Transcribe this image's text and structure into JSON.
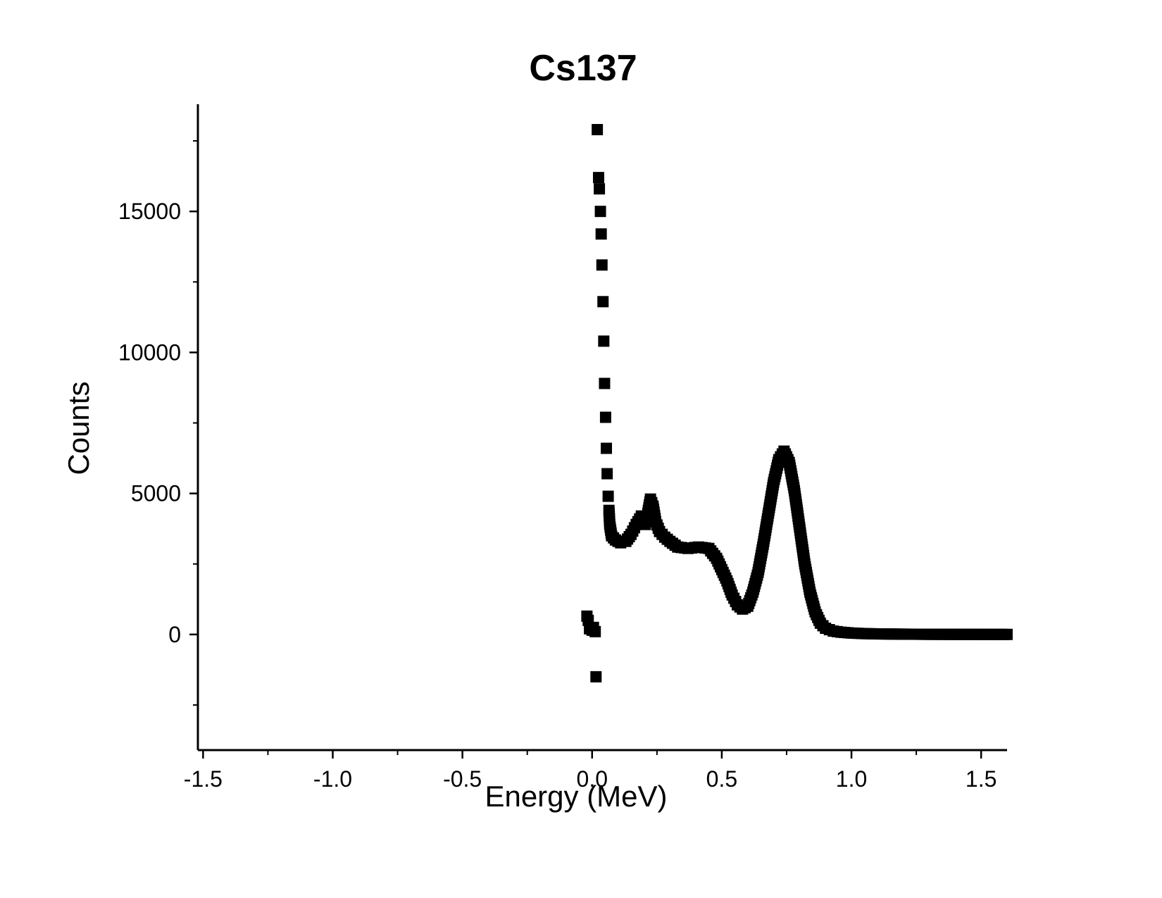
{
  "chart_data": {
    "type": "scatter",
    "title": "Cs137",
    "xlabel": "Energy (MeV)",
    "ylabel": "Counts",
    "xlim": [
      -1.52,
      1.6
    ],
    "ylim": [
      -4100,
      18800
    ],
    "xticks": [
      -1.5,
      -1.0,
      -0.5,
      0.0,
      0.5,
      1.0,
      1.5
    ],
    "xtick_labels": [
      "-1.5",
      "-1.0",
      "-0.5",
      "0.0",
      "0.5",
      "1.0",
      "1.5"
    ],
    "yticks": [
      0,
      5000,
      10000,
      15000
    ],
    "ytick_labels": [
      "0",
      "5000",
      "10000",
      "15000"
    ],
    "grid": false,
    "legend": "none",
    "marker": "square",
    "marker_color": "#000000",
    "series": [
      {
        "points": [
          [
            -0.02,
            650
          ],
          [
            -0.015,
            500
          ],
          [
            -0.01,
            200
          ],
          [
            0.0,
            150
          ],
          [
            0.005,
            250
          ],
          [
            0.012,
            100
          ],
          [
            0.015,
            -1500
          ],
          [
            0.02,
            17900
          ],
          [
            0.025,
            16200
          ],
          [
            0.028,
            15800
          ],
          [
            0.032,
            15000
          ],
          [
            0.035,
            14200
          ],
          [
            0.038,
            13100
          ],
          [
            0.042,
            11800
          ],
          [
            0.045,
            10400
          ],
          [
            0.048,
            8900
          ],
          [
            0.052,
            7700
          ],
          [
            0.055,
            6600
          ],
          [
            0.058,
            5700
          ],
          [
            0.062,
            4900
          ],
          [
            0.065,
            4400
          ],
          [
            0.068,
            3900
          ],
          [
            0.075,
            3500
          ],
          [
            0.09,
            3350
          ],
          [
            0.11,
            3250
          ],
          [
            0.13,
            3300
          ],
          [
            0.15,
            3550
          ],
          [
            0.17,
            3900
          ],
          [
            0.19,
            4200
          ],
          [
            0.205,
            3900
          ],
          [
            0.215,
            4300
          ],
          [
            0.225,
            4800
          ],
          [
            0.235,
            4550
          ],
          [
            0.245,
            4000
          ],
          [
            0.26,
            3650
          ],
          [
            0.28,
            3450
          ],
          [
            0.3,
            3300
          ],
          [
            0.33,
            3100
          ],
          [
            0.37,
            3050
          ],
          [
            0.41,
            3100
          ],
          [
            0.45,
            3050
          ],
          [
            0.48,
            2700
          ],
          [
            0.5,
            2300
          ],
          [
            0.52,
            1900
          ],
          [
            0.54,
            1400
          ],
          [
            0.56,
            1050
          ],
          [
            0.58,
            900
          ],
          [
            0.6,
            1000
          ],
          [
            0.62,
            1500
          ],
          [
            0.64,
            2200
          ],
          [
            0.66,
            3200
          ],
          [
            0.68,
            4300
          ],
          [
            0.7,
            5400
          ],
          [
            0.72,
            6200
          ],
          [
            0.74,
            6500
          ],
          [
            0.76,
            6100
          ],
          [
            0.78,
            5100
          ],
          [
            0.8,
            3800
          ],
          [
            0.82,
            2500
          ],
          [
            0.84,
            1500
          ],
          [
            0.86,
            800
          ],
          [
            0.88,
            400
          ],
          [
            0.9,
            220
          ],
          [
            0.93,
            120
          ],
          [
            0.96,
            80
          ],
          [
            1.0,
            50
          ],
          [
            1.05,
            30
          ],
          [
            1.1,
            20
          ],
          [
            1.15,
            15
          ],
          [
            1.2,
            10
          ],
          [
            1.3,
            5
          ],
          [
            1.4,
            3
          ],
          [
            1.5,
            2
          ],
          [
            1.6,
            1
          ]
        ]
      }
    ]
  }
}
